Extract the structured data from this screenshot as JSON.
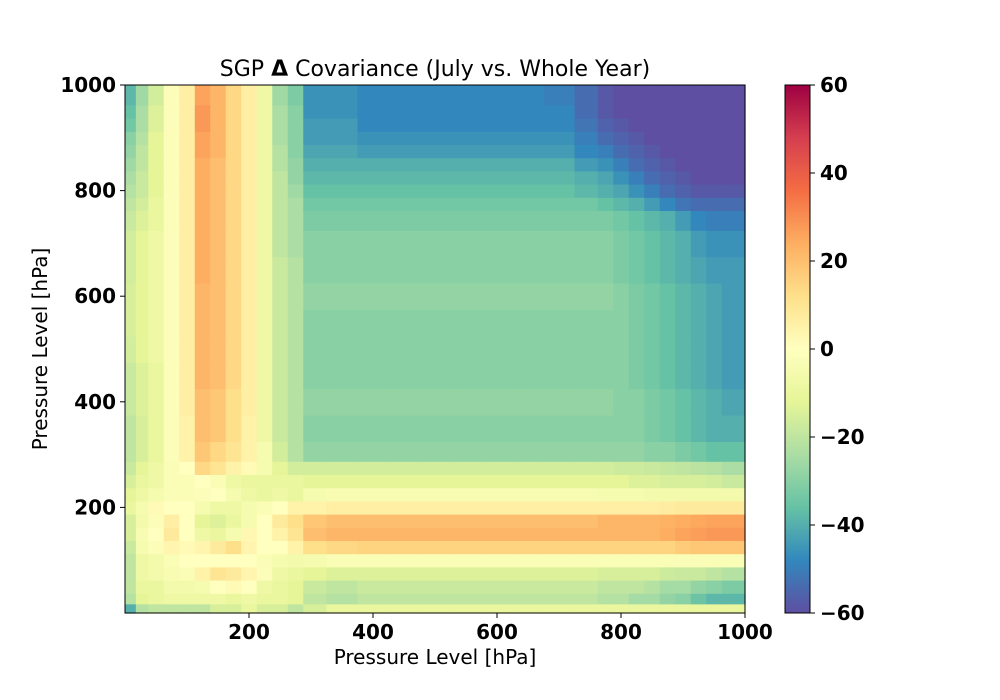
{
  "chart_data": {
    "type": "heatmap",
    "title_prefix": "SGP ",
    "title_symbol": "Δ",
    "title_suffix": " Covariance (July vs. Whole Year)",
    "xlabel": "Pressure Level [hPa]",
    "ylabel": "Pressure Level [hPa]",
    "xlim": [
      0,
      1000
    ],
    "ylim": [
      0,
      1000
    ],
    "x_ticks": [
      200,
      400,
      600,
      800,
      1000
    ],
    "y_ticks": [
      200,
      400,
      600,
      800,
      1000
    ],
    "colorbar": {
      "colormap": "Spectral_r",
      "vmin": -60,
      "vmax": 60,
      "ticks": [
        60,
        40,
        20,
        0,
        -20,
        -40,
        -60
      ],
      "tick_labels": [
        "60",
        "40",
        "20",
        "0",
        "−20",
        "−40",
        "−60"
      ]
    },
    "levels": [
      10,
      25,
      50,
      75,
      100,
      125,
      150,
      175,
      200,
      225,
      250,
      275,
      300,
      350,
      400,
      450,
      500,
      550,
      600,
      650,
      700,
      750,
      775,
      800,
      825,
      850,
      875,
      900,
      925,
      950,
      975,
      1000
    ],
    "values": [
      [
        -40,
        -22,
        -20,
        -20,
        -20,
        -20,
        -15,
        -15,
        -10,
        -15,
        -15,
        -20,
        -15,
        -10,
        -10,
        -10,
        -10,
        -10,
        -10,
        -10,
        -10,
        -10,
        -10,
        -10,
        -10,
        -10,
        -10,
        -10,
        -10,
        -10,
        -10,
        -10
      ],
      [
        -22,
        -12,
        -10,
        -8,
        -8,
        -8,
        -8,
        -10,
        -8,
        -10,
        -10,
        -12,
        -20,
        -22,
        -20,
        -20,
        -20,
        -20,
        -20,
        -20,
        -20,
        -20,
        -22,
        -22,
        -25,
        -25,
        -28,
        -30,
        -35,
        -38,
        -38,
        -38
      ],
      [
        -20,
        -10,
        -10,
        -6,
        -6,
        -5,
        0,
        2,
        0,
        -8,
        -10,
        -12,
        -18,
        -20,
        -18,
        -18,
        -18,
        -18,
        -18,
        -18,
        -18,
        -18,
        -20,
        -20,
        -20,
        -22,
        -25,
        -25,
        -28,
        -30,
        -32,
        -32
      ],
      [
        -20,
        -8,
        -6,
        -4,
        -3,
        5,
        10,
        8,
        4,
        -2,
        -8,
        -10,
        -12,
        -14,
        -14,
        -14,
        -14,
        -14,
        -14,
        -14,
        -14,
        -14,
        -15,
        -15,
        -15,
        -15,
        -17,
        -18,
        -18,
        -20,
        -22,
        -22
      ],
      [
        -20,
        -8,
        -6,
        -3,
        0,
        0,
        0,
        0,
        0,
        -3,
        -5,
        -6,
        -5,
        -3,
        -3,
        -3,
        -3,
        -3,
        -3,
        -3,
        -3,
        -3,
        -3,
        -3,
        -3,
        -3,
        -3,
        -3,
        -3,
        -3,
        -3,
        -3
      ],
      [
        -18,
        -5,
        -2,
        4,
        2,
        4,
        8,
        12,
        4,
        0,
        0,
        5,
        12,
        14,
        15,
        15,
        15,
        15,
        15,
        15,
        15,
        15,
        15,
        15,
        15,
        15,
        15,
        17,
        18,
        18,
        18,
        18
      ],
      [
        -15,
        -4,
        0,
        8,
        0,
        -8,
        -10,
        -5,
        3,
        0,
        5,
        10,
        20,
        22,
        22,
        22,
        22,
        22,
        22,
        22,
        22,
        22,
        22,
        22,
        22,
        22,
        24,
        26,
        27,
        28,
        28,
        28
      ],
      [
        -15,
        -6,
        -2,
        6,
        0,
        -12,
        -14,
        -10,
        -5,
        0,
        8,
        12,
        18,
        20,
        20,
        20,
        20,
        20,
        20,
        20,
        20,
        20,
        22,
        22,
        22,
        22,
        23,
        24,
        25,
        26,
        26,
        26
      ],
      [
        -10,
        -5,
        2,
        0,
        0,
        -5,
        -8,
        -8,
        -5,
        -3,
        0,
        5,
        5,
        6,
        6,
        6,
        6,
        6,
        6,
        6,
        6,
        6,
        6,
        6,
        6,
        6,
        7,
        8,
        8,
        8,
        8,
        8
      ],
      [
        -12,
        -8,
        -5,
        -3,
        -3,
        -2,
        0,
        -5,
        -8,
        -10,
        -8,
        -10,
        -5,
        -4,
        -4,
        -4,
        -4,
        -4,
        -4,
        -4,
        -4,
        -4,
        -5,
        -5,
        -5,
        -6,
        -6,
        -6,
        -6,
        -6,
        -6,
        -6
      ],
      [
        -15,
        -10,
        -8,
        -3,
        -3,
        0,
        -3,
        -8,
        -10,
        -10,
        -10,
        -10,
        -12,
        -12,
        -12,
        -12,
        -12,
        -12,
        -12,
        -12,
        -12,
        -12,
        -12,
        -12,
        -14,
        -14,
        -15,
        -15,
        -15,
        -16,
        -18,
        -18
      ],
      [
        -18,
        -12,
        -8,
        -3,
        0,
        14,
        10,
        5,
        2,
        -5,
        -12,
        -16,
        -16,
        -16,
        -16,
        -16,
        -16,
        -16,
        -16,
        -16,
        -16,
        -16,
        -16,
        -17,
        -17,
        -18,
        -19,
        -20,
        -21,
        -22,
        -24,
        -24
      ],
      [
        -20,
        -15,
        -10,
        -2,
        5,
        18,
        14,
        10,
        5,
        -5,
        -16,
        -22,
        -28,
        -28,
        -28,
        -28,
        -28,
        -28,
        -28,
        -28,
        -28,
        -28,
        -28,
        -28,
        -28,
        -30,
        -30,
        -32,
        -34,
        -36,
        -36,
        -36
      ],
      [
        -20,
        -15,
        -10,
        -2,
        5,
        20,
        18,
        12,
        5,
        -8,
        -18,
        -22,
        -30,
        -30,
        -30,
        -30,
        -30,
        -30,
        -30,
        -30,
        -30,
        -30,
        -30,
        -30,
        -30,
        -32,
        -34,
        -36,
        -38,
        -40,
        -40,
        -40
      ],
      [
        -18,
        -14,
        -10,
        -2,
        6,
        20,
        18,
        12,
        6,
        -8,
        -18,
        -22,
        -28,
        -28,
        -28,
        -28,
        -28,
        -28,
        -28,
        -28,
        -28,
        -28,
        -28,
        -30,
        -30,
        -32,
        -34,
        -36,
        -38,
        -40,
        -42,
        -42
      ],
      [
        -18,
        -14,
        -10,
        -2,
        6,
        22,
        20,
        14,
        6,
        -8,
        -18,
        -22,
        -30,
        -30,
        -30,
        -30,
        -30,
        -30,
        -30,
        -30,
        -30,
        -30,
        -30,
        -30,
        -32,
        -34,
        -36,
        -38,
        -40,
        -42,
        -44,
        -44
      ],
      [
        -16,
        -12,
        -8,
        -2,
        6,
        22,
        20,
        14,
        6,
        -8,
        -18,
        -22,
        -30,
        -30,
        -30,
        -30,
        -30,
        -30,
        -30,
        -30,
        -30,
        -30,
        -30,
        -30,
        -32,
        -34,
        -36,
        -38,
        -40,
        -42,
        -44,
        -44
      ],
      [
        -15,
        -12,
        -8,
        -2,
        6,
        22,
        20,
        14,
        6,
        -8,
        -18,
        -22,
        -30,
        -30,
        -30,
        -30,
        -30,
        -30,
        -30,
        -30,
        -30,
        -30,
        -30,
        -30,
        -32,
        -34,
        -36,
        -38,
        -40,
        -42,
        -44,
        -44
      ],
      [
        -15,
        -12,
        -8,
        -2,
        6,
        22,
        20,
        14,
        6,
        -8,
        -18,
        -22,
        -28,
        -28,
        -28,
        -28,
        -28,
        -28,
        -28,
        -28,
        -28,
        -28,
        -28,
        -30,
        -32,
        -34,
        -36,
        -38,
        -40,
        -42,
        -44,
        -44
      ],
      [
        -16,
        -12,
        -8,
        -2,
        6,
        24,
        20,
        14,
        6,
        -8,
        -18,
        -22,
        -30,
        -30,
        -30,
        -30,
        -30,
        -30,
        -30,
        -30,
        -30,
        -30,
        -30,
        -32,
        -34,
        -36,
        -38,
        -40,
        -42,
        -44,
        -44,
        -44
      ],
      [
        -16,
        -12,
        -8,
        -2,
        6,
        24,
        20,
        14,
        6,
        -8,
        -20,
        -24,
        -30,
        -30,
        -30,
        -30,
        -30,
        -30,
        -30,
        -30,
        -30,
        -30,
        -30,
        -32,
        -34,
        -36,
        -38,
        -40,
        -44,
        -46,
        -46,
        -46
      ],
      [
        -18,
        -14,
        -10,
        -2,
        6,
        24,
        20,
        14,
        6,
        -8,
        -20,
        -24,
        -32,
        -32,
        -32,
        -32,
        -32,
        -32,
        -32,
        -32,
        -32,
        -32,
        -32,
        -34,
        -36,
        -38,
        -40,
        -44,
        -48,
        -50,
        -50,
        -50
      ],
      [
        -20,
        -16,
        -10,
        -2,
        6,
        24,
        20,
        14,
        6,
        -8,
        -20,
        -24,
        -34,
        -34,
        -34,
        -34,
        -34,
        -34,
        -34,
        -34,
        -34,
        -34,
        -36,
        -38,
        -40,
        -44,
        -48,
        -52,
        -54,
        -54,
        -54,
        -54
      ],
      [
        -22,
        -18,
        -12,
        -2,
        6,
        24,
        20,
        14,
        6,
        -8,
        -20,
        -26,
        -36,
        -36,
        -36,
        -36,
        -36,
        -36,
        -36,
        -36,
        -36,
        -38,
        -40,
        -42,
        -46,
        -50,
        -54,
        -56,
        -58,
        -58,
        -58,
        -58
      ],
      [
        -24,
        -18,
        -12,
        -2,
        6,
        24,
        20,
        14,
        6,
        -8,
        -20,
        -28,
        -38,
        -38,
        -38,
        -38,
        -38,
        -38,
        -38,
        -38,
        -38,
        -40,
        -42,
        -46,
        -50,
        -54,
        -56,
        -58,
        -60,
        -60,
        -60,
        -60
      ],
      [
        -26,
        -20,
        -12,
        -2,
        6,
        24,
        20,
        14,
        6,
        -8,
        -22,
        -28,
        -40,
        -40,
        -40,
        -40,
        -40,
        -40,
        -40,
        -40,
        -40,
        -44,
        -46,
        -50,
        -54,
        -56,
        -58,
        -60,
        -60,
        -60,
        -60,
        -60
      ],
      [
        -28,
        -20,
        -12,
        -2,
        6,
        26,
        22,
        14,
        6,
        -8,
        -22,
        -30,
        -42,
        -42,
        -44,
        -44,
        -44,
        -44,
        -44,
        -44,
        -44,
        -48,
        -50,
        -54,
        -56,
        -58,
        -60,
        -60,
        -60,
        -60,
        -60,
        -60
      ],
      [
        -30,
        -22,
        -12,
        -2,
        6,
        26,
        22,
        14,
        6,
        -8,
        -24,
        -30,
        -44,
        -44,
        -46,
        -46,
        -46,
        -46,
        -46,
        -46,
        -46,
        -50,
        -54,
        -56,
        -58,
        -60,
        -60,
        -60,
        -60,
        -60,
        -60,
        -60
      ],
      [
        -34,
        -24,
        -14,
        -2,
        6,
        28,
        22,
        14,
        6,
        -8,
        -24,
        -30,
        -44,
        -44,
        -48,
        -48,
        -48,
        -48,
        -48,
        -48,
        -48,
        -52,
        -56,
        -58,
        -60,
        -60,
        -60,
        -60,
        -60,
        -60,
        -60,
        -60
      ],
      [
        -36,
        -24,
        -14,
        -2,
        6,
        28,
        22,
        14,
        6,
        -8,
        -24,
        -30,
        -46,
        -46,
        -48,
        -48,
        -48,
        -48,
        -48,
        -48,
        -48,
        -54,
        -58,
        -60,
        -60,
        -60,
        -60,
        -60,
        -60,
        -60,
        -60,
        -60
      ],
      [
        -38,
        -26,
        -16,
        -2,
        6,
        26,
        22,
        14,
        6,
        -8,
        -26,
        -32,
        -46,
        -46,
        -48,
        -48,
        -48,
        -48,
        -48,
        -48,
        -50,
        -54,
        -58,
        -60,
        -60,
        -60,
        -60,
        -60,
        -60,
        -60,
        -60,
        -60
      ],
      [
        -38,
        -26,
        -16,
        -2,
        6,
        26,
        22,
        14,
        6,
        -8,
        -26,
        -32,
        -46,
        -46,
        -48,
        -48,
        -48,
        -48,
        -48,
        -48,
        -50,
        -54,
        -58,
        -60,
        -60,
        -60,
        -60,
        -60,
        -60,
        -60,
        -60,
        -60
      ]
    ]
  }
}
